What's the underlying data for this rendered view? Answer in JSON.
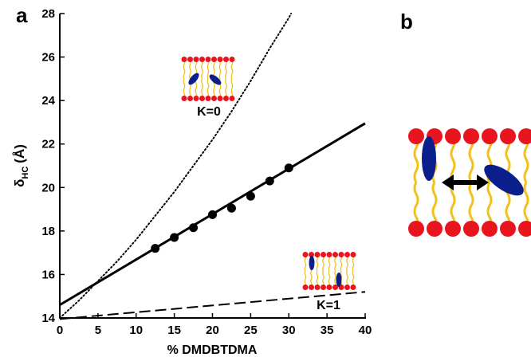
{
  "chart_data": {
    "type": "line",
    "panel_labels": [
      "a",
      "b"
    ],
    "x_label": "% DMDBTDMA",
    "y_label": {
      "main": "δ",
      "sub": "HC",
      "unit": "(Å)"
    },
    "xlim": [
      0,
      40
    ],
    "xticks": [
      0,
      5,
      10,
      15,
      20,
      25,
      30,
      35,
      40
    ],
    "ylim": [
      14,
      28
    ],
    "yticks": [
      14,
      16,
      18,
      20,
      22,
      24,
      26,
      28
    ],
    "annotations": [
      "K=0",
      "K=1"
    ],
    "series": [
      {
        "style": "points",
        "color": "#000000",
        "x": [
          12.5,
          15,
          17.5,
          20,
          22.5,
          25,
          27.5,
          30
        ],
        "values": [
          17.2,
          17.7,
          18.15,
          18.75,
          19.05,
          19.6,
          20.3,
          20.9
        ]
      },
      {
        "style": "solid",
        "color": "#000000",
        "x": [
          0,
          40
        ],
        "values": [
          14.6,
          22.95
        ]
      },
      {
        "style": "dotted",
        "color": "#000000",
        "x": [
          0,
          2.5,
          5,
          7.5,
          10,
          12.5,
          15,
          17.5,
          20,
          22.5,
          25,
          27.5,
          30,
          30.3
        ],
        "values": [
          14,
          14.8,
          15.7,
          16.6,
          17.6,
          18.7,
          19.8,
          21,
          22.2,
          23.5,
          24.9,
          26.4,
          27.8,
          28
        ]
      },
      {
        "style": "dashed",
        "color": "#000000",
        "x": [
          0,
          40
        ],
        "values": [
          13.95,
          15.2
        ]
      }
    ]
  }
}
